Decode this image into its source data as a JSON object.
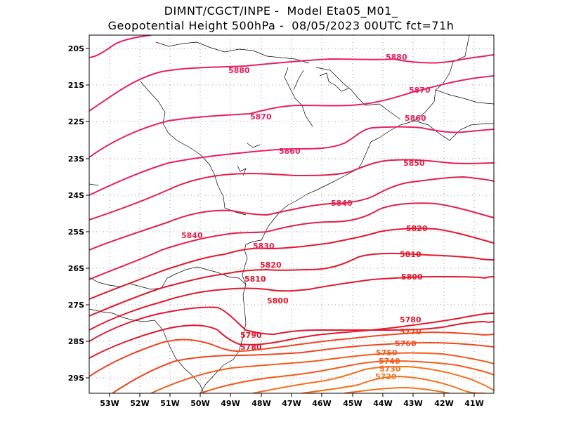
{
  "title": {
    "line1": "DIMNT/CGCT/INPE -  Model Eta05_M01_",
    "line2": "Geopotential Height 500hPa -  08/05/2023 00UTC fct=71h"
  },
  "axes": {
    "lon_ticks": [
      "53W",
      "52W",
      "51W",
      "50W",
      "49W",
      "48W",
      "47W",
      "46W",
      "45W",
      "44W",
      "43W",
      "42W",
      "41W"
    ],
    "lat_ticks": [
      "20S",
      "21S",
      "22S",
      "23S",
      "24S",
      "25S",
      "26S",
      "27S",
      "28S",
      "29S"
    ]
  },
  "colors": {
    "c5880": "#e8205f",
    "c5870": "#e8205f",
    "c5860": "#e8205f",
    "c5850": "#e51f48",
    "c5840": "#e51f48",
    "c5830": "#e51f48",
    "c5820": "#e2182c",
    "c5810": "#e2182c",
    "c5800": "#e2182c",
    "c5790": "#e2182c",
    "c5780": "#f0461f",
    "c5770": "#f0461f",
    "c5760": "#f0461f",
    "c5750": "#f35b1c",
    "c5740": "#f35b1c",
    "c5730": "#f6701a",
    "c5720": "#f6701a",
    "coast": "#000000",
    "grid": "#999999"
  },
  "contour_labels": [
    {
      "text": "5880"
    },
    {
      "text": "5880"
    },
    {
      "text": "5870"
    },
    {
      "text": "5870"
    },
    {
      "text": "5860"
    },
    {
      "text": "5860"
    },
    {
      "text": "5850"
    },
    {
      "text": "5840"
    },
    {
      "text": "5840"
    },
    {
      "text": "5830"
    },
    {
      "text": "5820"
    },
    {
      "text": "5820"
    },
    {
      "text": "5810"
    },
    {
      "text": "5810"
    },
    {
      "text": "5800"
    },
    {
      "text": "5800"
    },
    {
      "text": "5790"
    },
    {
      "text": "5780"
    },
    {
      "text": "5780"
    },
    {
      "text": "5770"
    },
    {
      "text": "5760"
    },
    {
      "text": "5750"
    },
    {
      "text": "5740"
    },
    {
      "text": "5730"
    },
    {
      "text": "5720"
    }
  ]
}
